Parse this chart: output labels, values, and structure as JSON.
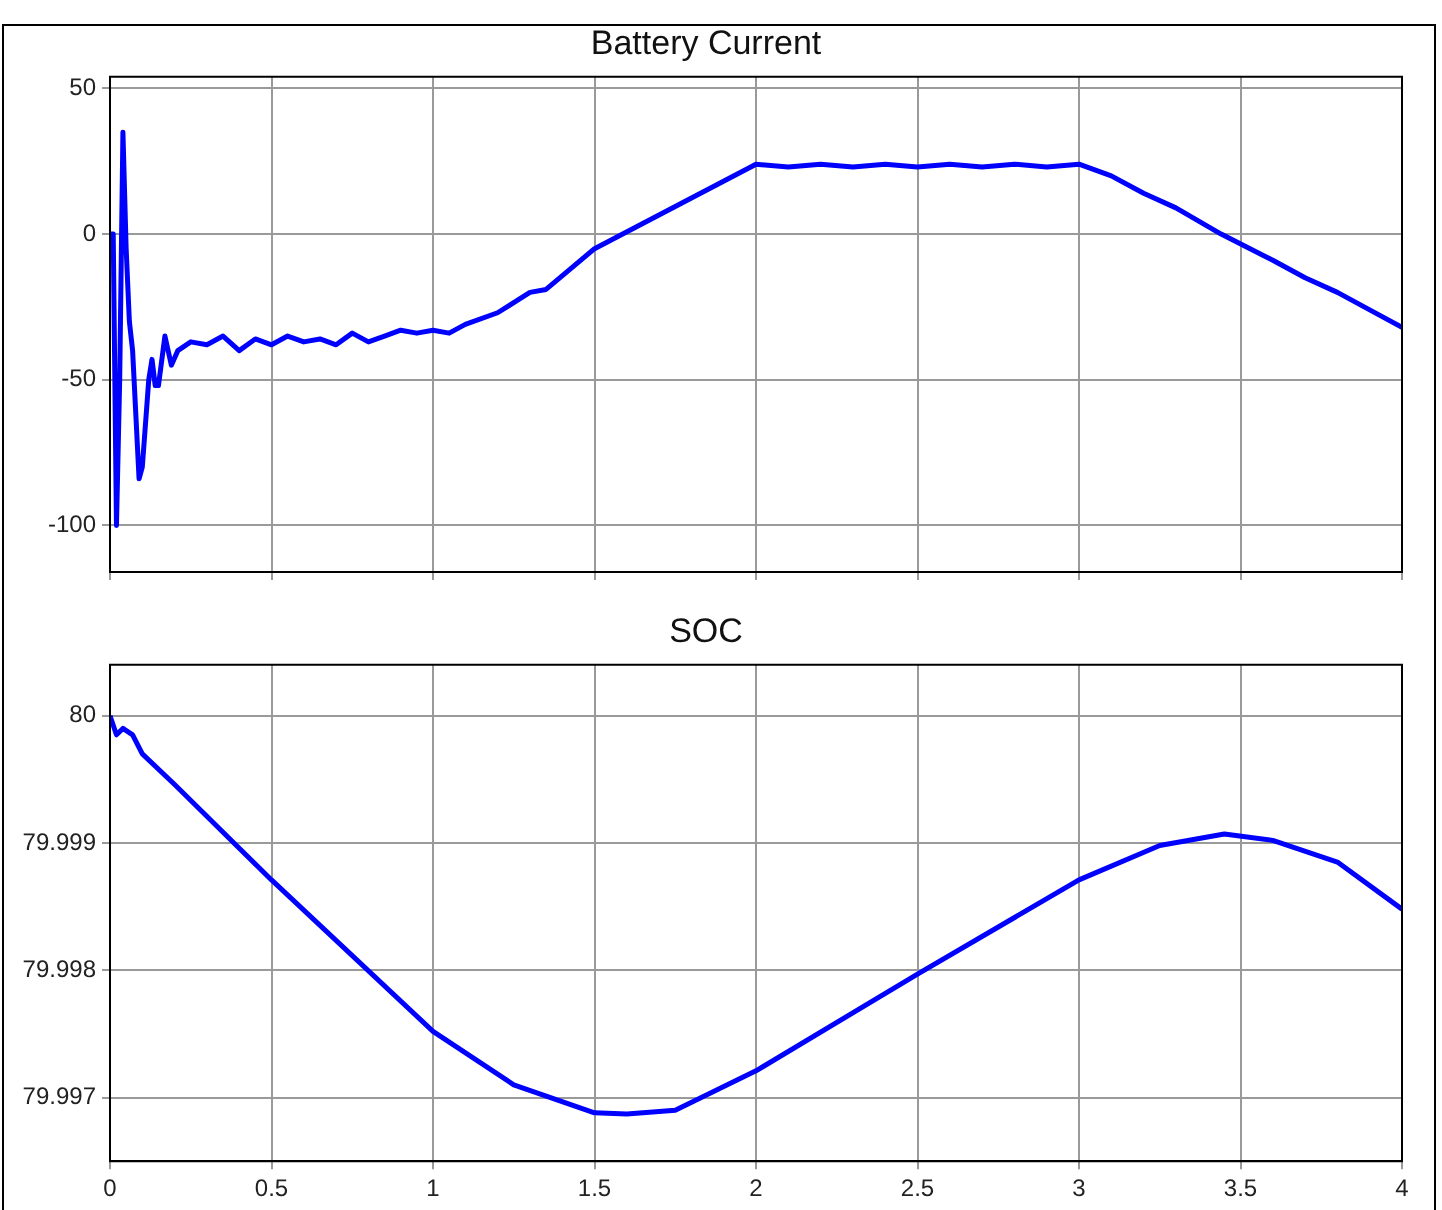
{
  "chart_data": [
    {
      "type": "line",
      "title": "Battery Current",
      "x": [
        0,
        0.01,
        0.02,
        0.03,
        0.04,
        0.05,
        0.06,
        0.07,
        0.09,
        0.1,
        0.12,
        0.13,
        0.14,
        0.15,
        0.17,
        0.19,
        0.21,
        0.25,
        0.3,
        0.35,
        0.4,
        0.45,
        0.5,
        0.55,
        0.6,
        0.65,
        0.7,
        0.75,
        0.8,
        0.85,
        0.9,
        0.95,
        1,
        1.05,
        1.1,
        1.2,
        1.3,
        1.35,
        1.5,
        2,
        2.1,
        2.2,
        2.3,
        2.4,
        2.5,
        2.6,
        2.7,
        2.8,
        2.9,
        3,
        3.1,
        3.2,
        3.3,
        3.44,
        3.6,
        3.7,
        3.8,
        3.9,
        4
      ],
      "series": [
        {
          "color": "#0000ff",
          "values": [
            0,
            0,
            -100,
            -50,
            35,
            -5,
            -30,
            -40,
            -84,
            -80,
            -50,
            -43,
            -52,
            -52,
            -35,
            -45,
            -40,
            -37,
            -38,
            -35,
            -40,
            -36,
            -38,
            -35,
            -37,
            -36,
            -38,
            -34,
            -37,
            -35,
            -33,
            -34,
            -33,
            -34,
            -31,
            -27,
            -20,
            -19,
            -5,
            24,
            23,
            24,
            23,
            24,
            23,
            24,
            23,
            24,
            23,
            24,
            20,
            14,
            9,
            0,
            -9,
            -15,
            -20,
            -26,
            -32
          ]
        }
      ],
      "xlim": [
        0,
        4
      ],
      "xticks": [
        0,
        0.5,
        1,
        1.5,
        2,
        2.5,
        3,
        3.5,
        4
      ],
      "ylim": [
        -116,
        54
      ],
      "yticks": [
        -100,
        -50,
        0,
        50
      ],
      "tick_labels": "y",
      "grid": true,
      "marker": "none",
      "line_style": "solid"
    },
    {
      "type": "line",
      "title": "SOC",
      "x": [
        0,
        0.02,
        0.04,
        0.07,
        0.1,
        0.2,
        0.5,
        1,
        1.25,
        1.5,
        1.6,
        1.75,
        2,
        2.5,
        3,
        3.25,
        3.45,
        3.6,
        3.8,
        4
      ],
      "series": [
        {
          "color": "#0000ff",
          "values": [
            80,
            79.99985,
            79.9999,
            79.99985,
            79.9997,
            79.99946,
            79.99871,
            79.99752,
            79.9971,
            79.99688,
            79.99687,
            79.9969,
            79.99721,
            79.99797,
            79.99871,
            79.99898,
            79.99907,
            79.99902,
            79.99885,
            79.99848
          ]
        }
      ],
      "xlim": [
        0,
        4
      ],
      "xticks": [
        0,
        0.5,
        1,
        1.5,
        2,
        2.5,
        3,
        3.5,
        4
      ],
      "ylim": [
        79.9965,
        80.0004
      ],
      "yticks": [
        79.997,
        79.998,
        79.999,
        80
      ],
      "grid": true,
      "marker": "none",
      "line_style": "solid"
    }
  ]
}
